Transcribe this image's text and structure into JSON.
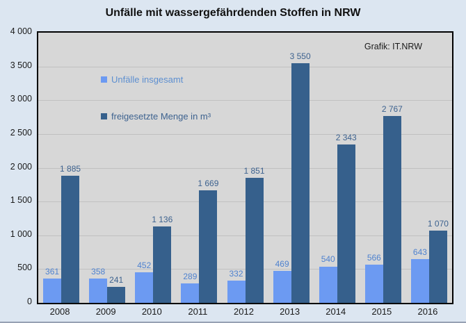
{
  "header": {
    "title": "Unfälle mit wassergefährdenden Stoffen in NRW"
  },
  "credit": "Grafik: IT.NRW",
  "colors": {
    "background": "#dce6f1",
    "plot_background": "#d7d7d7",
    "gridline": "#c0c0c0",
    "series_light": "#6c9af2",
    "series_dark": "#36608c",
    "label_light": "#4f82cf",
    "label_dark": "#3d628f"
  },
  "legend": {
    "items": [
      {
        "label": "Unfälle insgesamt",
        "swatch_color": "#6c9af2",
        "text_color": "#5d8fd0"
      },
      {
        "label": "freigesetzte Menge in m³",
        "swatch_color": "#36608c",
        "text_color": "#3d628f"
      }
    ]
  },
  "chart_data": {
    "type": "bar",
    "title": "Unfälle mit wassergefährdenden Stoffen in NRW",
    "xlabel": "",
    "ylabel": "",
    "categories": [
      "2008",
      "2009",
      "2010",
      "2011",
      "2012",
      "2013",
      "2014",
      "2015",
      "2016"
    ],
    "series": [
      {
        "name": "Unfälle insgesamt",
        "color": "#6c9af2",
        "label_color": "#4f82cf",
        "values": [
          361,
          358,
          452,
          289,
          332,
          469,
          540,
          566,
          643
        ],
        "labels": [
          "361",
          "358",
          "452",
          "289",
          "332",
          "469",
          "540",
          "566",
          "643"
        ]
      },
      {
        "name": "freigesetzte Menge in m³",
        "color": "#36608c",
        "label_color": "#3d628f",
        "values": [
          1885,
          241,
          1136,
          1669,
          1851,
          3550,
          2343,
          2767,
          1070
        ],
        "labels": [
          "1 885",
          "241",
          "1 136",
          "1 669",
          "1 851",
          "3 550",
          "2 343",
          "2 767",
          "1 070"
        ]
      }
    ],
    "ylim": [
      0,
      4000
    ],
    "yticks": [
      {
        "value": 0,
        "label": "0"
      },
      {
        "value": 500,
        "label": "500"
      },
      {
        "value": 1000,
        "label": "1 000"
      },
      {
        "value": 1500,
        "label": "1 500"
      },
      {
        "value": 2000,
        "label": "2 000"
      },
      {
        "value": 2500,
        "label": "2 500"
      },
      {
        "value": 3000,
        "label": "3 000"
      },
      {
        "value": 3500,
        "label": "3 500"
      },
      {
        "value": 4000,
        "label": "4 000"
      }
    ],
    "grid": true,
    "legend_position": "inside-top-left",
    "annotations": [
      "Grafik: IT.NRW"
    ]
  }
}
